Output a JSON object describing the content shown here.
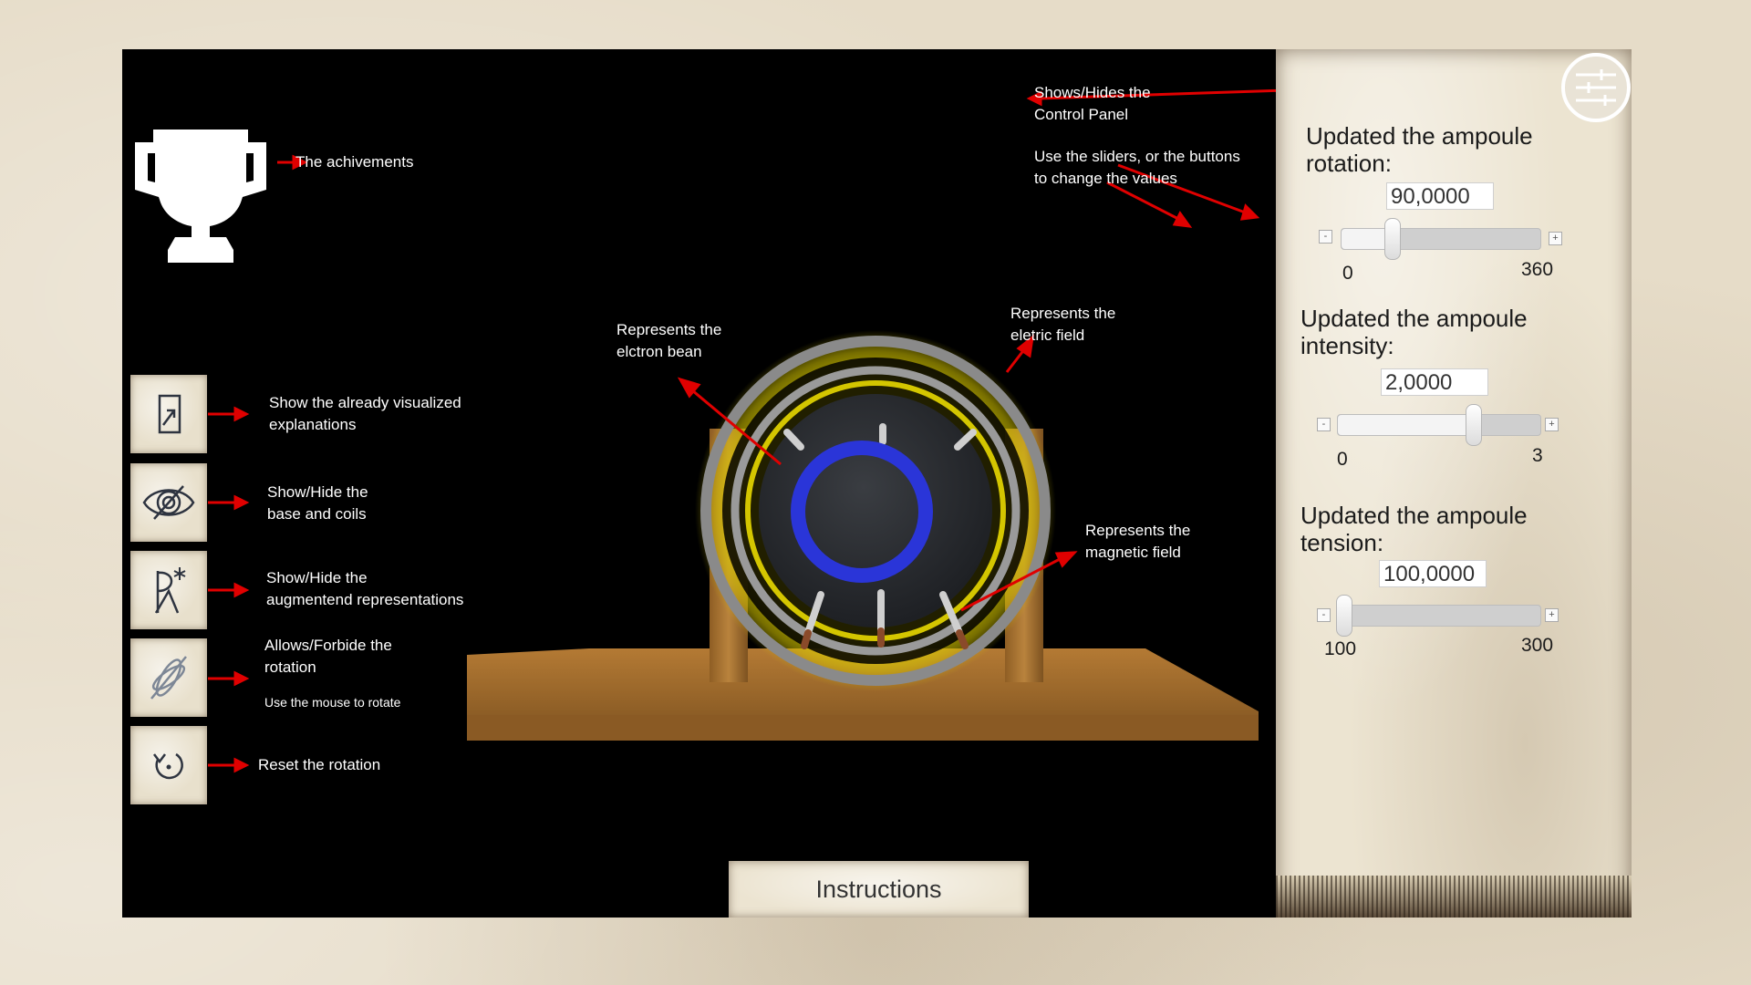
{
  "annotations": {
    "achievements": "The achivements",
    "control_panel": [
      "Shows/Hides the",
      "Control Panel"
    ],
    "sliders": [
      "Use the sliders, or the buttons",
      "to change the values"
    ],
    "electron_beam": [
      "Represents the",
      "elctron bean"
    ],
    "electric_field": [
      "Represents the",
      "eletric field"
    ],
    "magnetic_field": [
      "Represents the",
      "magnetic field"
    ],
    "explanations": [
      "Show the already visualized",
      "explanations"
    ],
    "base_coils": [
      "Show/Hide the",
      "base and coils"
    ],
    "augmented": [
      "Show/Hide the",
      "augmentend representations"
    ],
    "rotation": [
      "Allows/Forbide the",
      "rotation"
    ],
    "rotation_hint": "Use the mouse to rotate",
    "reset": "Reset the rotation"
  },
  "sidebar": {
    "buttons": [
      {
        "icon": "explanations-icon"
      },
      {
        "icon": "eye-coils-icon"
      },
      {
        "icon": "augmented-icon"
      },
      {
        "icon": "rotation-toggle-icon"
      },
      {
        "icon": "reset-rotation-icon"
      }
    ]
  },
  "control_panel": {
    "rotation": {
      "label": [
        "Updated the ampoule",
        "rotation:"
      ],
      "value": "90,0000",
      "min": "0",
      "max": "360",
      "minus": "-",
      "plus": "+",
      "fraction": 0.25
    },
    "intensity": {
      "label": [
        "Updated the ampoule",
        "intensity:"
      ],
      "value": "2,0000",
      "min": "0",
      "max": "3",
      "minus": "-",
      "plus": "+",
      "fraction": 0.667
    },
    "tension": {
      "label": [
        "Updated the ampoule",
        "tension:"
      ],
      "value": "100,0000",
      "min": "100",
      "max": "300",
      "minus": "-",
      "plus": "+",
      "fraction": 0.0
    }
  },
  "instructions_label": "Instructions",
  "colors": {
    "arrow": "#e00000",
    "beam": "#2a35d8",
    "glow": "#f4e400",
    "wood": "#a06a2a",
    "coil": "#8a8a8a"
  }
}
